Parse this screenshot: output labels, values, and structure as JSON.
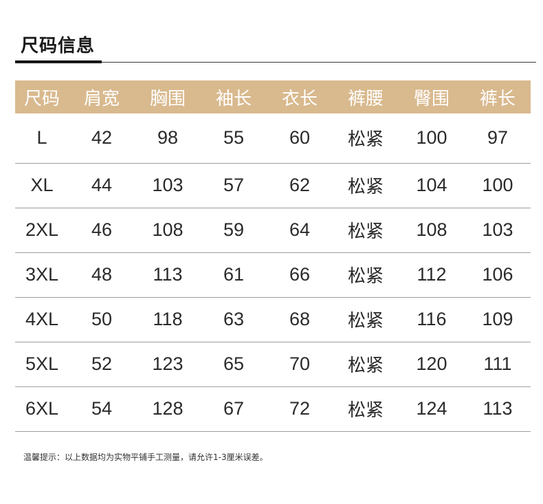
{
  "title": "尺码信息",
  "colors": {
    "header_bg": "#d9b98e",
    "header_text": "#ffffff"
  },
  "table": {
    "headers": [
      "尺码",
      "肩宽",
      "胸围",
      "袖长",
      "衣长",
      "裤腰",
      "臀围",
      "裤长"
    ],
    "rows": [
      [
        "L",
        "42",
        "98",
        "55",
        "60",
        "松紧",
        "100",
        "97"
      ],
      [
        "XL",
        "44",
        "103",
        "57",
        "62",
        "松紧",
        "104",
        "100"
      ],
      [
        "2XL",
        "46",
        "108",
        "59",
        "64",
        "松紧",
        "108",
        "103"
      ],
      [
        "3XL",
        "48",
        "113",
        "61",
        "66",
        "松紧",
        "112",
        "106"
      ],
      [
        "4XL",
        "50",
        "118",
        "63",
        "68",
        "松紧",
        "116",
        "109"
      ],
      [
        "5XL",
        "52",
        "123",
        "65",
        "70",
        "松紧",
        "120",
        "111"
      ],
      [
        "6XL",
        "54",
        "128",
        "67",
        "72",
        "松紧",
        "124",
        "113"
      ]
    ]
  },
  "note": "温馨提示：以上数据均为实物平铺手工测量，请允许1-3厘米误差。"
}
